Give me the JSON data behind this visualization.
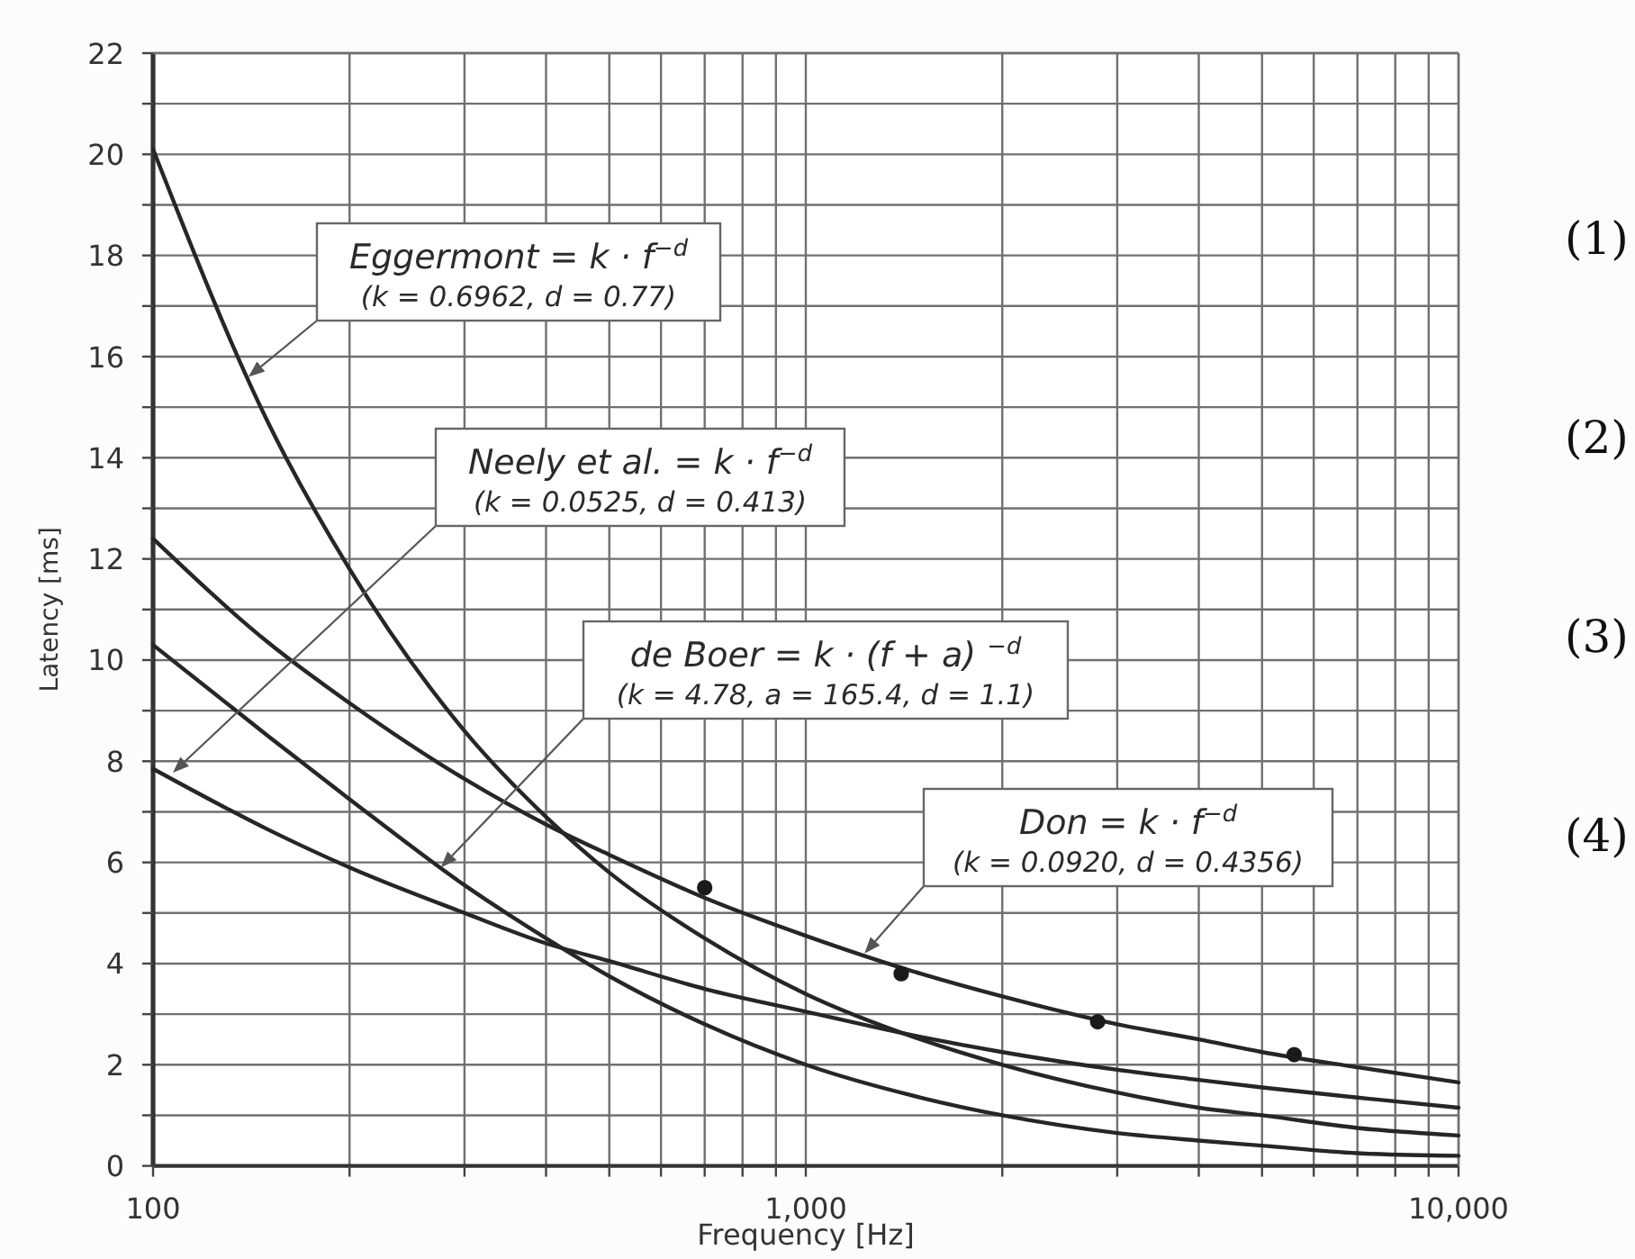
{
  "chart_data": {
    "type": "line",
    "xlabel": "Frequency [Hz]",
    "ylabel": "Latency [ms]",
    "x": [
      100,
      150,
      200,
      300,
      400,
      500,
      700,
      1000,
      1500,
      2000,
      3000,
      4000,
      5000,
      7000,
      10000
    ],
    "series": [
      {
        "color": "#262626",
        "values": [
          20.1,
          14.7,
          11.8,
          8.6,
          6.9,
          5.8,
          4.5,
          3.4,
          2.5,
          2.0,
          1.45,
          1.15,
          1.0,
          0.75,
          0.6
        ]
      },
      {
        "color": "#262626",
        "values": [
          7.85,
          6.65,
          5.9,
          5.0,
          4.4,
          4.05,
          3.5,
          3.05,
          2.55,
          2.25,
          1.9,
          1.7,
          1.55,
          1.35,
          1.15
        ]
      },
      {
        "color": "#262626",
        "values": [
          10.3,
          8.5,
          7.25,
          5.55,
          4.5,
          3.75,
          2.8,
          2.0,
          1.35,
          1.0,
          0.65,
          0.5,
          0.4,
          0.25,
          0.2
        ]
      },
      {
        "color": "#262626",
        "values": [
          12.4,
          10.35,
          9.15,
          7.65,
          6.75,
          6.15,
          5.3,
          4.55,
          3.8,
          3.35,
          2.8,
          2.5,
          2.25,
          1.95,
          1.65
        ]
      },
      {
        "type": "scatter",
        "color": "#1a1a1a",
        "marker": "circle",
        "x": [
          700,
          1400,
          2800,
          5600
        ],
        "values": [
          5.5,
          3.8,
          2.85,
          2.2
        ]
      }
    ],
    "xlim": [
      100,
      10000
    ],
    "ylim": [
      0,
      22
    ],
    "xticks": [
      100,
      {
        "value": 200,
        "label": null
      },
      {
        "value": 300,
        "label": null
      },
      {
        "value": 400,
        "label": null
      },
      {
        "value": 500,
        "label": null
      },
      {
        "value": 600,
        "label": null
      },
      {
        "value": 700,
        "label": null
      },
      {
        "value": 800,
        "label": null
      },
      {
        "value": 900,
        "label": null
      },
      {
        "value": 1000,
        "label": "1,000"
      },
      {
        "value": 2000,
        "label": null
      },
      {
        "value": 3000,
        "label": null
      },
      {
        "value": 4000,
        "label": null
      },
      {
        "value": 5000,
        "label": null
      },
      {
        "value": 6000,
        "label": null
      },
      {
        "value": 7000,
        "label": null
      },
      {
        "value": 8000,
        "label": null
      },
      {
        "value": 9000,
        "label": null
      },
      {
        "value": 10000,
        "label": "10,000"
      }
    ],
    "yticks": [
      0,
      {
        "value": 1,
        "label": null
      },
      2,
      {
        "value": 3,
        "label": null
      },
      4,
      {
        "value": 5,
        "label": null
      },
      6,
      {
        "value": 7,
        "label": null
      },
      8,
      {
        "value": 9,
        "label": null
      },
      10,
      {
        "value": 11,
        "label": null
      },
      12,
      {
        "value": 13,
        "label": null
      },
      14,
      {
        "value": 15,
        "label": null
      },
      16,
      {
        "value": 17,
        "label": null
      },
      18,
      {
        "value": 19,
        "label": null
      },
      20,
      {
        "value": 21,
        "label": null
      },
      22
    ],
    "log": "x",
    "grid": true,
    "annotations": [
      {
        "text": "Eggermont = k · f$^{−d}$\n(k = 0.6962, d = 0.77)",
        "x": 140,
        "y": 15.6
      },
      "Neely et al. = k · f$^{−d}$\n(k = 0.0525, d = 0.413)",
      {
        "text": "de Boer = k · (f + a) $^{−d}$\n(k = 4.78, a = 165.4, d = 1.1)",
        "x": 276,
        "y": 5.9
      },
      {
        "text": "Don = k · f$^{−d}$\n(k = 0.0920, d = 0.4356)",
        "x": 1230,
        "y": 4.2
      },
      "(1)",
      "(2)",
      "(3)",
      "(4)"
    ]
  }
}
